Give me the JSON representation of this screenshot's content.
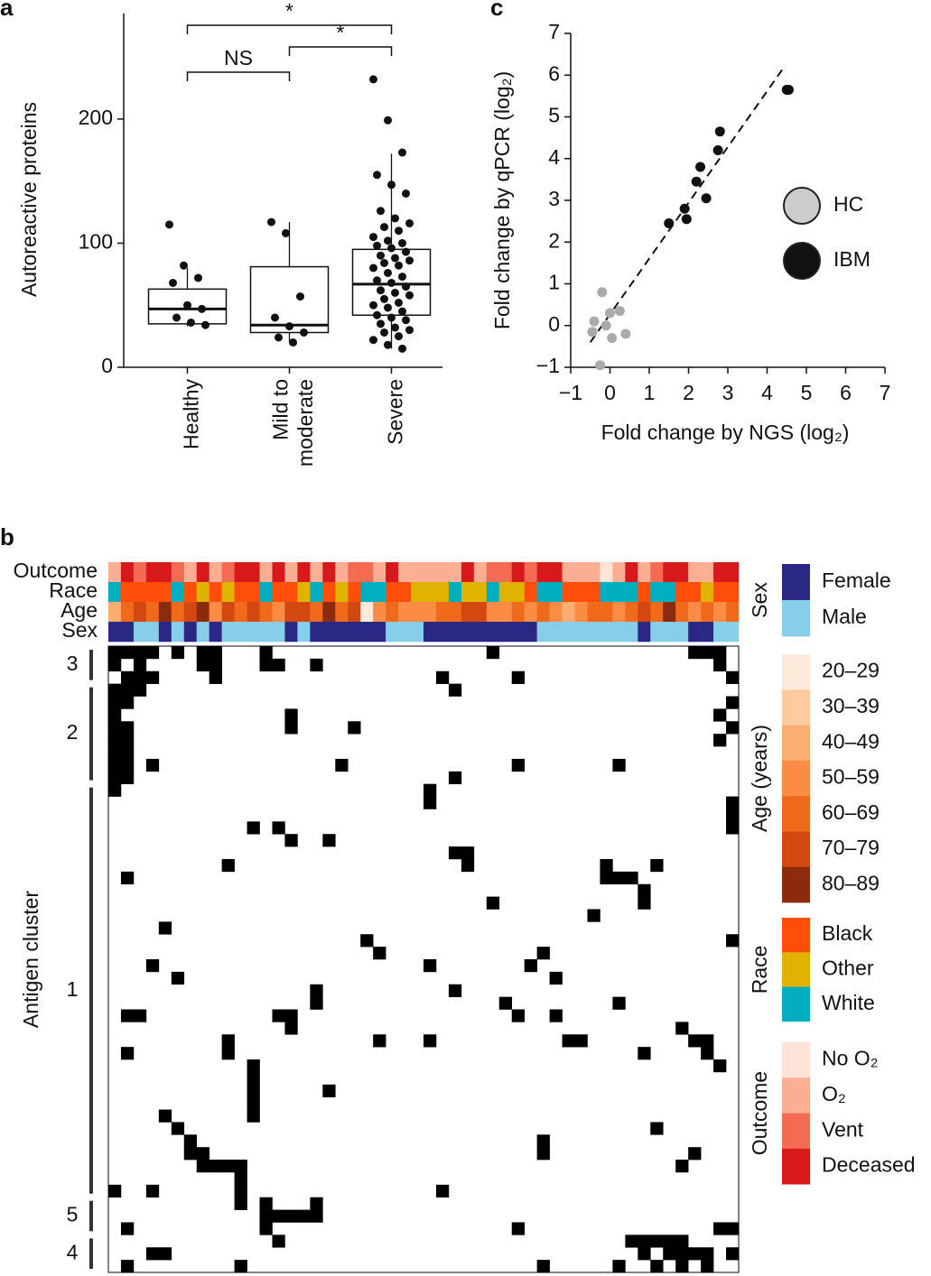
{
  "panel_labels": [
    "a",
    "b",
    "c"
  ],
  "chart_data": [
    {
      "type": "box",
      "ylabel": "Autoreactive proteins",
      "ylim": [
        0,
        285
      ],
      "yticks": [
        0,
        100,
        200
      ],
      "categories": [
        "Healthy",
        "Mild to moderate",
        "Severe"
      ],
      "boxes": [
        {
          "low": 33,
          "q1": 35,
          "median": 47,
          "q3": 63,
          "high": 80
        },
        {
          "low": 20,
          "q1": 28,
          "median": 34,
          "q3": 81,
          "high": 117
        },
        {
          "low": 15,
          "q1": 42,
          "median": 67,
          "q3": 95,
          "high": 172
        }
      ],
      "points": [
        [
          115,
          82,
          72,
          68,
          50,
          47,
          40,
          36,
          34
        ],
        [
          117,
          108,
          57,
          40,
          33,
          28,
          24,
          20
        ],
        [
          232,
          199,
          173,
          155,
          147,
          140,
          126,
          120,
          116,
          113,
          110,
          105,
          102,
          100,
          98,
          96,
          93,
          90,
          88,
          86,
          84,
          82,
          80,
          76,
          73,
          70,
          68,
          65,
          62,
          60,
          58,
          55,
          52,
          50,
          48,
          45,
          42,
          40,
          38,
          35,
          32,
          30,
          28,
          25,
          22,
          18,
          15
        ]
      ],
      "comparisons": [
        {
          "label": "NS",
          "from": 0,
          "to": 1
        },
        {
          "label": "*",
          "from": 1,
          "to": 2
        },
        {
          "label": "*",
          "from": 0,
          "to": 2
        }
      ]
    },
    {
      "type": "heatmap",
      "ylabel": "Antigen cluster",
      "annotations": [
        {
          "name": "Outcome",
          "legend_title": "Outcome",
          "categories": [
            "No O₂",
            "O₂",
            "Vent",
            "Deceased"
          ],
          "colors": [
            "#fde3d8",
            "#fbae94",
            "#f36b52",
            "#d7191c"
          ],
          "values": [
            1,
            3,
            2,
            3,
            3,
            2,
            1,
            3,
            1,
            2,
            3,
            3,
            1,
            3,
            1,
            3,
            1,
            3,
            1,
            2,
            2,
            1,
            3,
            1,
            1,
            1,
            1,
            1,
            3,
            1,
            2,
            2,
            3,
            2,
            3,
            3,
            1,
            1,
            1,
            0,
            1,
            3,
            1,
            2,
            3,
            3,
            1,
            1,
            3,
            3
          ]
        },
        {
          "name": "Race",
          "legend_title": "Race",
          "categories": [
            "Black",
            "Other",
            "White"
          ],
          "colors": [
            "#ff4e0a",
            "#e0b300",
            "#00aebf"
          ],
          "values": [
            2,
            0,
            0,
            0,
            0,
            2,
            0,
            1,
            0,
            1,
            0,
            0,
            2,
            0,
            0,
            1,
            2,
            0,
            1,
            0,
            2,
            2,
            0,
            0,
            1,
            1,
            1,
            2,
            1,
            1,
            2,
            1,
            1,
            0,
            2,
            2,
            0,
            0,
            0,
            2,
            2,
            2,
            0,
            2,
            2,
            0,
            0,
            1,
            0,
            0
          ]
        },
        {
          "name": "Age",
          "legend_title": "Age (years)",
          "categories": [
            "20–29",
            "30–39",
            "40–49",
            "50–59",
            "60–69",
            "70–79",
            "80–89"
          ],
          "colors": [
            "#fde9dc",
            "#fccca0",
            "#fcae72",
            "#fb8c45",
            "#f06a1c",
            "#d34710",
            "#8b2a0c"
          ],
          "values": [
            2,
            4,
            5,
            4,
            6,
            4,
            5,
            6,
            3,
            5,
            4,
            5,
            4,
            3,
            5,
            5,
            4,
            6,
            4,
            5,
            0,
            3,
            4,
            3,
            3,
            3,
            4,
            4,
            5,
            5,
            3,
            3,
            4,
            3,
            4,
            3,
            2,
            3,
            4,
            4,
            3,
            4,
            5,
            4,
            6,
            4,
            3,
            4,
            3,
            4
          ]
        },
        {
          "name": "Sex",
          "legend_title": "Sex",
          "categories": [
            "Female",
            "Male"
          ],
          "colors": [
            "#2b2785",
            "#87ceeb"
          ],
          "values": [
            0,
            0,
            1,
            1,
            0,
            1,
            0,
            1,
            0,
            1,
            1,
            1,
            1,
            1,
            0,
            1,
            0,
            0,
            0,
            0,
            0,
            0,
            1,
            1,
            1,
            0,
            0,
            0,
            0,
            0,
            0,
            0,
            0,
            0,
            1,
            1,
            1,
            1,
            1,
            1,
            1,
            1,
            0,
            1,
            1,
            1,
            0,
            0,
            1,
            1
          ]
        }
      ],
      "clusters": [
        {
          "label": "3",
          "start": 0,
          "end": 2
        },
        {
          "label": "2",
          "start": 3,
          "end": 10
        },
        {
          "label": "1",
          "start": 11,
          "end": 43
        },
        {
          "label": "5",
          "start": 44,
          "end": 46
        },
        {
          "label": "4",
          "start": 47,
          "end": 49
        }
      ],
      "cells": [
        [
          0,
          0
        ],
        [
          0,
          1
        ],
        [
          0,
          2
        ],
        [
          0,
          3
        ],
        [
          0,
          5
        ],
        [
          0,
          7
        ],
        [
          0,
          8
        ],
        [
          0,
          12
        ],
        [
          0,
          30
        ],
        [
          0,
          46
        ],
        [
          0,
          47
        ],
        [
          0,
          48
        ],
        [
          1,
          0
        ],
        [
          1,
          2
        ],
        [
          1,
          7
        ],
        [
          1,
          8
        ],
        [
          1,
          12
        ],
        [
          1,
          13
        ],
        [
          1,
          16
        ],
        [
          1,
          48
        ],
        [
          2,
          1
        ],
        [
          2,
          2
        ],
        [
          2,
          3
        ],
        [
          2,
          8
        ],
        [
          2,
          26
        ],
        [
          2,
          32
        ],
        [
          2,
          49
        ],
        [
          3,
          0
        ],
        [
          3,
          1
        ],
        [
          3,
          2
        ],
        [
          3,
          27
        ],
        [
          4,
          0
        ],
        [
          4,
          1
        ],
        [
          4,
          49
        ],
        [
          5,
          0
        ],
        [
          5,
          14
        ],
        [
          5,
          48
        ],
        [
          6,
          0
        ],
        [
          6,
          1
        ],
        [
          6,
          14
        ],
        [
          6,
          19
        ],
        [
          6,
          49
        ],
        [
          7,
          0
        ],
        [
          7,
          1
        ],
        [
          7,
          48
        ],
        [
          8,
          0
        ],
        [
          8,
          1
        ],
        [
          9,
          0
        ],
        [
          9,
          1
        ],
        [
          9,
          3
        ],
        [
          9,
          18
        ],
        [
          9,
          32
        ],
        [
          9,
          40
        ],
        [
          10,
          0
        ],
        [
          10,
          1
        ],
        [
          10,
          27
        ],
        [
          11,
          0
        ],
        [
          11,
          25
        ],
        [
          12,
          25
        ],
        [
          12,
          49
        ],
        [
          13,
          49
        ],
        [
          14,
          49
        ],
        [
          14,
          11
        ],
        [
          14,
          13
        ],
        [
          15,
          14
        ],
        [
          15,
          17
        ],
        [
          16,
          28
        ],
        [
          16,
          27
        ],
        [
          17,
          28
        ],
        [
          17,
          9
        ],
        [
          17,
          39
        ],
        [
          18,
          39
        ],
        [
          18,
          40
        ],
        [
          18,
          41
        ],
        [
          19,
          42
        ],
        [
          17,
          43
        ],
        [
          18,
          1
        ],
        [
          20,
          42
        ],
        [
          20,
          30
        ],
        [
          21,
          38
        ],
        [
          22,
          4
        ],
        [
          23,
          20
        ],
        [
          23,
          49
        ],
        [
          24,
          21
        ],
        [
          24,
          34
        ],
        [
          25,
          3
        ],
        [
          25,
          25
        ],
        [
          25,
          33
        ],
        [
          26,
          5
        ],
        [
          26,
          35
        ],
        [
          27,
          27
        ],
        [
          28,
          40
        ],
        [
          27,
          16
        ],
        [
          28,
          16
        ],
        [
          29,
          1
        ],
        [
          29,
          2
        ],
        [
          29,
          13
        ],
        [
          29,
          14
        ],
        [
          30,
          14
        ],
        [
          28,
          31
        ],
        [
          29,
          32
        ],
        [
          29,
          35
        ],
        [
          31,
          9
        ],
        [
          31,
          21
        ],
        [
          31,
          25
        ],
        [
          31,
          36
        ],
        [
          31,
          37
        ],
        [
          30,
          45
        ],
        [
          31,
          46
        ],
        [
          31,
          47
        ],
        [
          32,
          47
        ],
        [
          33,
          48
        ],
        [
          32,
          1
        ],
        [
          32,
          9
        ],
        [
          32,
          42
        ],
        [
          33,
          11
        ],
        [
          34,
          11
        ],
        [
          35,
          11
        ],
        [
          36,
          11
        ],
        [
          37,
          11
        ],
        [
          35,
          17
        ],
        [
          37,
          4
        ],
        [
          38,
          5
        ],
        [
          39,
          6
        ],
        [
          39,
          34
        ],
        [
          38,
          43
        ],
        [
          40,
          6
        ],
        [
          40,
          7
        ],
        [
          40,
          34
        ],
        [
          41,
          7
        ],
        [
          41,
          8
        ],
        [
          41,
          9
        ],
        [
          41,
          10
        ],
        [
          40,
          46
        ],
        [
          41,
          45
        ],
        [
          42,
          10
        ],
        [
          43,
          0
        ],
        [
          43,
          3
        ],
        [
          43,
          26
        ],
        [
          43,
          10
        ],
        [
          44,
          10
        ],
        [
          44,
          12
        ],
        [
          45,
          12
        ],
        [
          45,
          13
        ],
        [
          46,
          12
        ],
        [
          45,
          14
        ],
        [
          45,
          15
        ],
        [
          45,
          16
        ],
        [
          44,
          16
        ],
        [
          46,
          1
        ],
        [
          46,
          32
        ],
        [
          46,
          48
        ],
        [
          46,
          49
        ],
        [
          47,
          41
        ],
        [
          47,
          42
        ],
        [
          47,
          43
        ],
        [
          47,
          44
        ],
        [
          47,
          45
        ],
        [
          48,
          42
        ],
        [
          48,
          44
        ],
        [
          48,
          45
        ],
        [
          48,
          46
        ],
        [
          48,
          47
        ],
        [
          48,
          49
        ],
        [
          47,
          13
        ],
        [
          48,
          3
        ],
        [
          48,
          4
        ],
        [
          49,
          1
        ],
        [
          49,
          10
        ],
        [
          49,
          34
        ],
        [
          49,
          43
        ],
        [
          49,
          45
        ],
        [
          49,
          47
        ],
        [
          49,
          40
        ]
      ]
    },
    {
      "type": "scatter",
      "xlabel": "Fold change by NGS (log₂)",
      "ylabel": "Fold change by qPCR (log₂)",
      "xlim": [
        -1,
        7
      ],
      "ylim": [
        -1,
        7
      ],
      "xticks": [
        {
          "value": -1,
          "label": "−1"
        },
        0,
        1,
        2,
        3,
        4,
        5,
        6,
        7
      ],
      "yticks": [
        {
          "value": -1,
          "label": "−1"
        },
        0,
        1,
        2,
        3,
        4,
        5,
        6,
        7
      ],
      "series": [
        {
          "name": "HC",
          "color": "#aaaaaa",
          "x": [
            -0.2,
            -0.4,
            -0.45,
            -0.1,
            0,
            0.25,
            0.05,
            0.4,
            -0.25
          ],
          "y": [
            0.8,
            0.1,
            -0.15,
            0,
            0.3,
            0.35,
            -0.3,
            -0.2,
            -0.95
          ]
        },
        {
          "name": "IBM",
          "color": "#111111",
          "x": [
            4.55,
            4.5,
            2.8,
            2.75,
            2.3,
            2.2,
            2.45,
            1.9,
            1.95,
            1.5
          ],
          "y": [
            5.65,
            5.65,
            4.65,
            4.2,
            3.8,
            3.45,
            3.05,
            2.8,
            2.55,
            2.45
          ]
        }
      ],
      "fit_line": {
        "x": [
          -0.5,
          4.4
        ],
        "y": [
          -0.4,
          6.15
        ]
      }
    }
  ]
}
